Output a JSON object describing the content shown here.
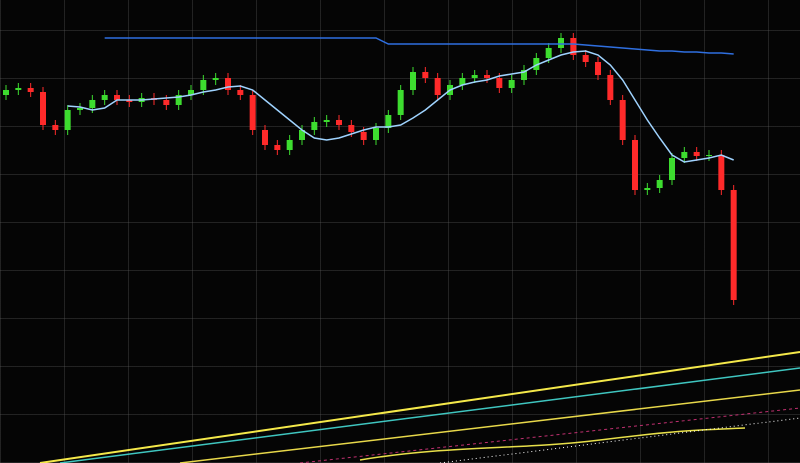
{
  "chart_data": {
    "type": "candlestick",
    "ylim": [
      60,
      380
    ],
    "up_color": "#3ddc2f",
    "down_color": "#ff2a2a",
    "open": [
      305,
      310,
      312,
      308,
      275,
      270,
      290,
      292,
      300,
      305,
      300,
      298,
      302,
      300,
      295,
      305,
      310,
      320,
      322,
      310,
      305,
      270,
      255,
      250,
      260,
      270,
      278,
      280,
      275,
      268,
      260,
      272,
      285,
      310,
      328,
      322,
      305,
      315,
      322,
      325,
      322,
      312,
      320,
      330,
      342,
      352,
      362,
      345,
      338,
      325,
      300,
      260,
      210,
      212,
      220,
      242,
      248,
      244,
      245,
      210
    ],
    "close": [
      310,
      312,
      308,
      275,
      270,
      290,
      292,
      300,
      305,
      300,
      298,
      302,
      300,
      295,
      305,
      310,
      320,
      322,
      310,
      305,
      270,
      255,
      250,
      260,
      270,
      278,
      280,
      275,
      268,
      260,
      272,
      285,
      310,
      328,
      322,
      305,
      315,
      322,
      325,
      322,
      312,
      320,
      330,
      342,
      352,
      362,
      345,
      338,
      325,
      300,
      260,
      210,
      212,
      220,
      242,
      248,
      244,
      245,
      210,
      100
    ],
    "high": [
      315,
      317,
      317,
      313,
      280,
      295,
      297,
      305,
      310,
      310,
      305,
      307,
      307,
      305,
      310,
      315,
      325,
      327,
      327,
      315,
      310,
      275,
      260,
      265,
      275,
      283,
      285,
      285,
      280,
      273,
      277,
      290,
      315,
      333,
      333,
      327,
      320,
      327,
      330,
      330,
      327,
      325,
      335,
      347,
      357,
      367,
      367,
      350,
      343,
      330,
      305,
      265,
      217,
      225,
      247,
      253,
      253,
      250,
      250,
      215
    ],
    "low": [
      300,
      305,
      303,
      270,
      265,
      265,
      285,
      287,
      295,
      295,
      293,
      293,
      295,
      290,
      290,
      300,
      305,
      315,
      305,
      300,
      265,
      250,
      245,
      245,
      255,
      265,
      273,
      270,
      263,
      255,
      255,
      267,
      280,
      305,
      317,
      300,
      300,
      310,
      317,
      317,
      307,
      307,
      315,
      325,
      337,
      347,
      340,
      333,
      320,
      295,
      255,
      205,
      205,
      207,
      215,
      237,
      239,
      239,
      205,
      95
    ],
    "series": [
      {
        "color": "#9fd3ff",
        "values": [
          null,
          null,
          null,
          null,
          null,
          294,
          293,
          290,
          292,
          300,
          300,
          300,
          301,
          302,
          303,
          305,
          308,
          310,
          313,
          314,
          310,
          300,
          290,
          280,
          270,
          262,
          260,
          262,
          266,
          270,
          273,
          273,
          275,
          282,
          290,
          300,
          310,
          315,
          318,
          320,
          324,
          326,
          328,
          335,
          340,
          345,
          348,
          349,
          345,
          335,
          320,
          300,
          280,
          262,
          245,
          238,
          240,
          242,
          245,
          240
        ]
      },
      {
        "color": "#2f6fe0",
        "values": [
          null,
          null,
          null,
          null,
          null,
          null,
          null,
          null,
          362,
          362,
          362,
          362,
          362,
          362,
          362,
          362,
          362,
          362,
          362,
          362,
          362,
          362,
          362,
          362,
          362,
          362,
          362,
          362,
          362,
          362,
          362,
          356,
          356,
          356,
          356,
          356,
          356,
          356,
          356,
          356,
          356,
          356,
          356,
          356,
          356,
          356,
          356,
          355,
          354,
          353,
          352,
          351,
          350,
          349,
          349,
          348,
          348,
          347,
          347,
          346
        ]
      }
    ]
  }
}
